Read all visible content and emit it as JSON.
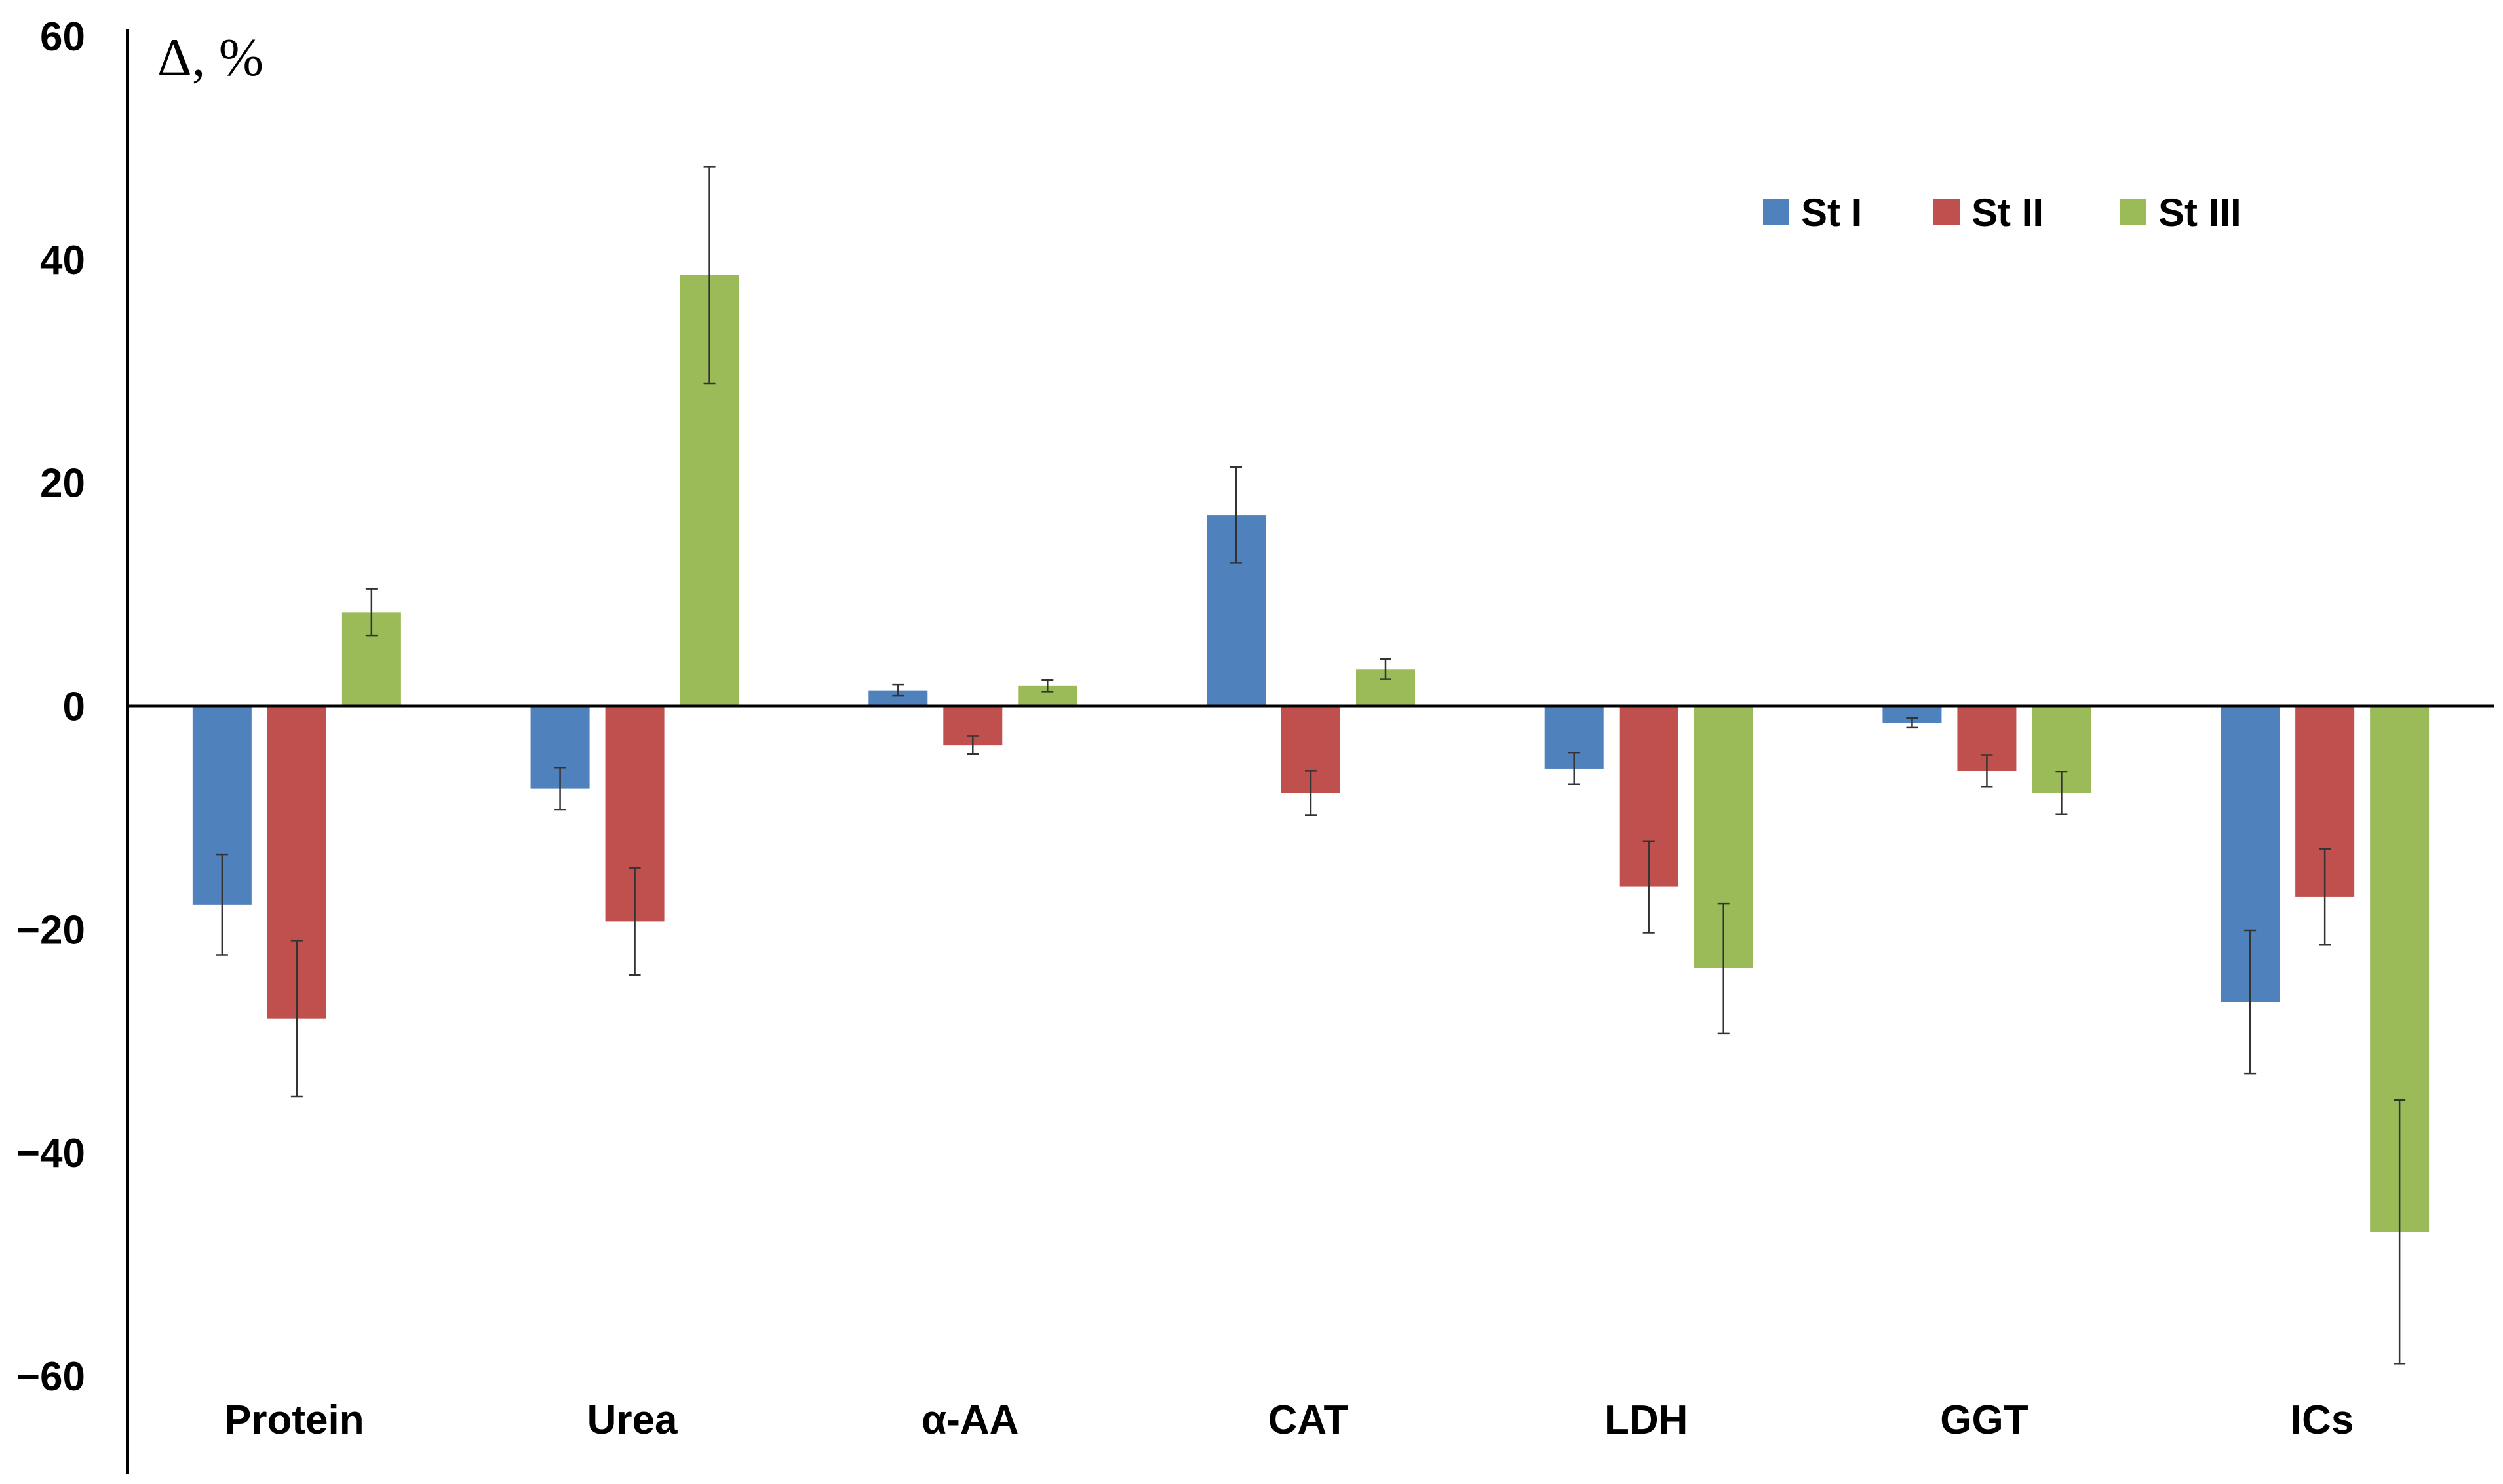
{
  "chart_data": {
    "type": "bar",
    "ylabel": "Δ, %",
    "ylim": [
      -60,
      60
    ],
    "yticks": [
      60,
      40,
      20,
      0,
      -20,
      -40,
      -60
    ],
    "ytick_labels": [
      "60",
      "40",
      "20",
      "0",
      "−20",
      "−40",
      "−60"
    ],
    "categories": [
      "Protein",
      "Urea",
      "α-AA",
      "CAT",
      "LDH",
      "GGT",
      "ICs"
    ],
    "legend_position": "top-right",
    "grid": false,
    "series": [
      {
        "name": "St I",
        "color": "#4F81BD",
        "values": [
          -17.8,
          -7.4,
          1.4,
          17.1,
          -5.6,
          -1.5,
          -26.5
        ],
        "errors": [
          4.5,
          1.9,
          0.5,
          4.3,
          1.4,
          0.4,
          6.4
        ]
      },
      {
        "name": "St II",
        "color": "#C0504D",
        "values": [
          -28.0,
          -19.3,
          -3.5,
          -7.8,
          -16.2,
          -5.8,
          -17.1
        ],
        "errors": [
          7.0,
          4.8,
          0.8,
          2.0,
          4.1,
          1.4,
          4.3
        ]
      },
      {
        "name": "St III",
        "color": "#9BBB59",
        "values": [
          8.4,
          38.6,
          1.8,
          3.3,
          -23.5,
          -7.8,
          -47.1
        ],
        "errors": [
          2.1,
          9.7,
          0.5,
          0.9,
          5.8,
          1.9,
          11.8
        ]
      }
    ]
  }
}
